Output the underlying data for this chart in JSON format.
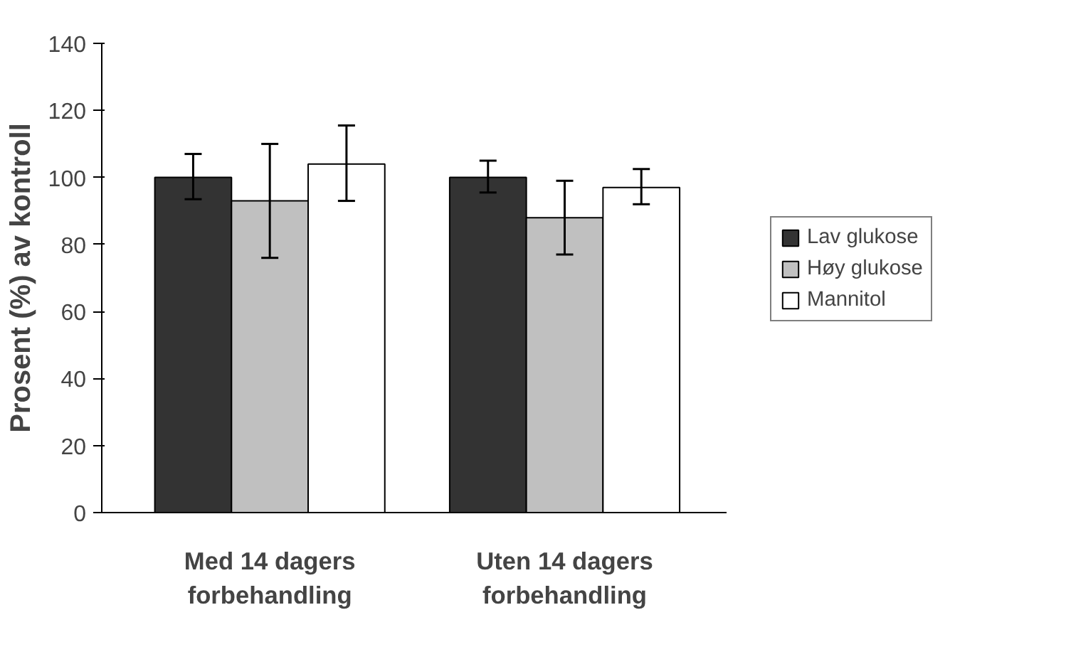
{
  "chart_data": {
    "type": "bar",
    "ylabel": "Prosent (%) av kontroll",
    "categories": [
      "Med 14 dagers\nforbehandling",
      "Uten 14 dagers\nforbehandling"
    ],
    "series": [
      {
        "name": "Lav glukose",
        "color": "#333333",
        "values": [
          100,
          100
        ],
        "errors": [
          [
            93.5,
            107
          ],
          [
            95.5,
            105
          ]
        ]
      },
      {
        "name": "Høy glukose",
        "color": "#c0c0c0",
        "values": [
          93,
          88
        ],
        "errors": [
          [
            76,
            110
          ],
          [
            77,
            99
          ]
        ]
      },
      {
        "name": "Mannitol",
        "color": "#ffffff",
        "values": [
          104,
          97
        ],
        "errors": [
          [
            93,
            115.5
          ],
          [
            92,
            102.5
          ]
        ]
      }
    ],
    "ylim": [
      0,
      140
    ],
    "yticks": [
      0,
      20,
      40,
      60,
      80,
      100,
      120,
      140
    ],
    "grid": false,
    "legend": "right"
  }
}
